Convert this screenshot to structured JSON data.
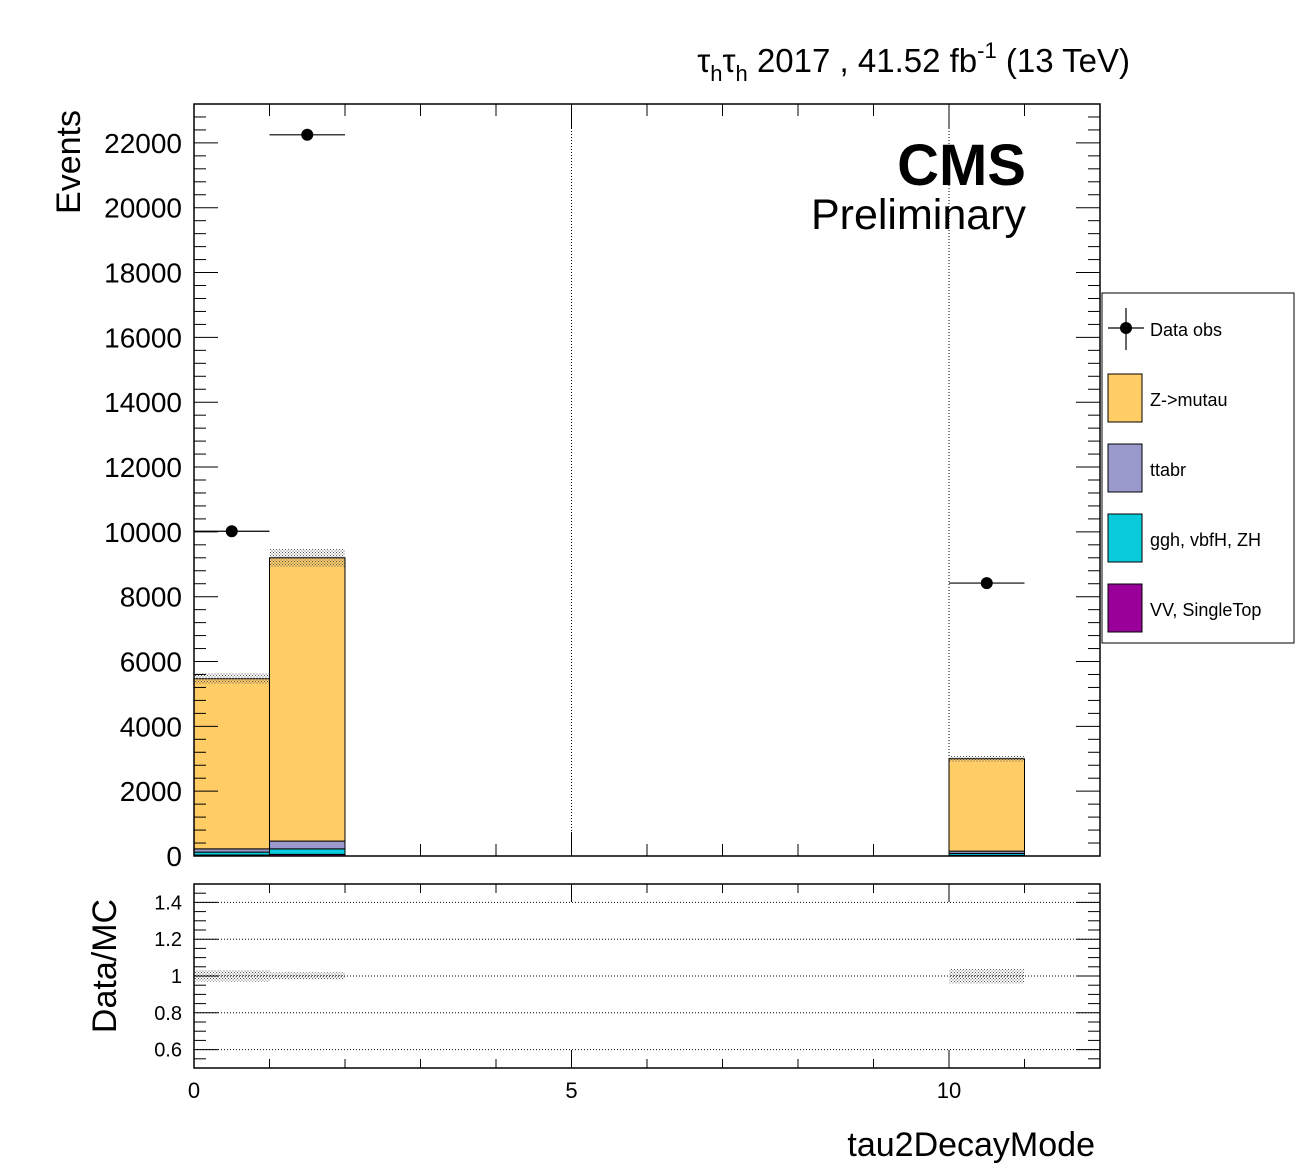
{
  "header": {
    "lumi": {
      "tau": "τ",
      "sub": "h",
      "rest": " 2017 , 41.52 fb",
      "sup": "-1",
      "energy": " (13 TeV)"
    },
    "cms": "CMS",
    "preliminary": "Preliminary"
  },
  "chart_data": [
    {
      "type": "bar",
      "stacked": true,
      "xlabel": "tau2DecayMode",
      "ylabel": "Events",
      "xlim": [
        0,
        12
      ],
      "ylim": [
        0,
        23200
      ],
      "x_ticks": [
        "0",
        "5",
        "10"
      ],
      "y_ticks": [
        "0",
        "2000",
        "4000",
        "6000",
        "8000",
        "10000",
        "12000",
        "14000",
        "16000",
        "18000",
        "20000",
        "22000"
      ],
      "grid_x": [
        5,
        10
      ],
      "legend_position": "right",
      "bins": [
        {
          "x_low": 0,
          "x_high": 1
        },
        {
          "x_low": 1,
          "x_high": 2
        },
        {
          "x_low": 10,
          "x_high": 11
        }
      ],
      "series": [
        {
          "name": "VV, SingleTop",
          "color": "#990099",
          "values": [
            30,
            50,
            20
          ]
        },
        {
          "name": "ggh, vbfH, ZH",
          "color": "#0acbdc",
          "values": [
            90,
            170,
            60
          ]
        },
        {
          "name": "ttabr",
          "color": "#9999cc",
          "values": [
            100,
            240,
            70
          ]
        },
        {
          "name": "Z->mutau",
          "color": "#ffcc66",
          "values": [
            5250,
            8740,
            2850
          ]
        }
      ],
      "mc_uncertainty_relative": 0.03,
      "data": {
        "name": "Data obs",
        "points": [
          {
            "x": 0.5,
            "xerr": 0.5,
            "y": 10020
          },
          {
            "x": 1.5,
            "xerr": 0.5,
            "y": 22250
          },
          {
            "x": 10.5,
            "xerr": 0.5,
            "y": 8420
          }
        ]
      }
    },
    {
      "type": "ratio",
      "ylabel": "Data/MC",
      "xlim": [
        0,
        12
      ],
      "ylim": [
        0.5,
        1.5
      ],
      "y_ticks": [
        "0.6",
        "0.8",
        "1",
        "1.2",
        "1.4"
      ],
      "grid_y": [
        0.6,
        0.8,
        1.0,
        1.2,
        1.4
      ],
      "uncertainty_band": [
        {
          "x_low": 0,
          "x_high": 1,
          "low": 0.97,
          "high": 1.03
        },
        {
          "x_low": 1,
          "x_high": 2,
          "low": 0.98,
          "high": 1.02
        },
        {
          "x_low": 10,
          "x_high": 11,
          "low": 0.96,
          "high": 1.04
        }
      ]
    }
  ]
}
